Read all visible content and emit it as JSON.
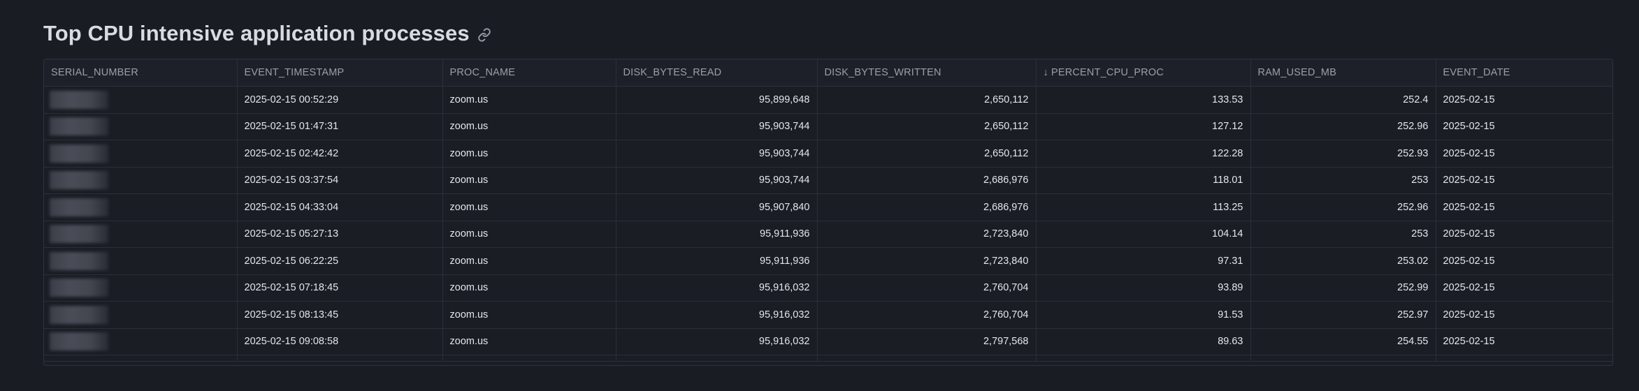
{
  "header": {
    "title": "Top CPU intensive application processes",
    "link_icon": "link-icon"
  },
  "table": {
    "sort": {
      "column": "PERCENT_CPU_PROC",
      "direction": "descending",
      "icon": "arrow-down-icon"
    },
    "columns": [
      {
        "key": "serial",
        "label": "SERIAL_NUMBER",
        "align": "left"
      },
      {
        "key": "ts",
        "label": "EVENT_TIMESTAMP",
        "align": "left"
      },
      {
        "key": "proc",
        "label": "PROC_NAME",
        "align": "left"
      },
      {
        "key": "read",
        "label": "DISK_BYTES_READ",
        "align": "right"
      },
      {
        "key": "written",
        "label": "DISK_BYTES_WRITTEN",
        "align": "right"
      },
      {
        "key": "cpu",
        "label": "PERCENT_CPU_PROC",
        "align": "right"
      },
      {
        "key": "ram",
        "label": "RAM_USED_MB",
        "align": "right"
      },
      {
        "key": "date",
        "label": "EVENT_DATE",
        "align": "left"
      }
    ],
    "rows": [
      {
        "serial": "",
        "ts": "2025-02-15 00:52:29",
        "proc": "zoom.us",
        "read": "95,899,648",
        "written": "2,650,112",
        "cpu": "133.53",
        "ram": "252.4",
        "date": "2025-02-15"
      },
      {
        "serial": "",
        "ts": "2025-02-15 01:47:31",
        "proc": "zoom.us",
        "read": "95,903,744",
        "written": "2,650,112",
        "cpu": "127.12",
        "ram": "252.96",
        "date": "2025-02-15"
      },
      {
        "serial": "",
        "ts": "2025-02-15 02:42:42",
        "proc": "zoom.us",
        "read": "95,903,744",
        "written": "2,650,112",
        "cpu": "122.28",
        "ram": "252.93",
        "date": "2025-02-15"
      },
      {
        "serial": "",
        "ts": "2025-02-15 03:37:54",
        "proc": "zoom.us",
        "read": "95,903,744",
        "written": "2,686,976",
        "cpu": "118.01",
        "ram": "253",
        "date": "2025-02-15"
      },
      {
        "serial": "",
        "ts": "2025-02-15 04:33:04",
        "proc": "zoom.us",
        "read": "95,907,840",
        "written": "2,686,976",
        "cpu": "113.25",
        "ram": "252.96",
        "date": "2025-02-15"
      },
      {
        "serial": "",
        "ts": "2025-02-15 05:27:13",
        "proc": "zoom.us",
        "read": "95,911,936",
        "written": "2,723,840",
        "cpu": "104.14",
        "ram": "253",
        "date": "2025-02-15"
      },
      {
        "serial": "",
        "ts": "2025-02-15 06:22:25",
        "proc": "zoom.us",
        "read": "95,911,936",
        "written": "2,723,840",
        "cpu": "97.31",
        "ram": "253.02",
        "date": "2025-02-15"
      },
      {
        "serial": "",
        "ts": "2025-02-15 07:18:45",
        "proc": "zoom.us",
        "read": "95,916,032",
        "written": "2,760,704",
        "cpu": "93.89",
        "ram": "252.99",
        "date": "2025-02-15"
      },
      {
        "serial": "",
        "ts": "2025-02-15 08:13:45",
        "proc": "zoom.us",
        "read": "95,916,032",
        "written": "2,760,704",
        "cpu": "91.53",
        "ram": "252.97",
        "date": "2025-02-15"
      },
      {
        "serial": "",
        "ts": "2025-02-15 09:08:58",
        "proc": "zoom.us",
        "read": "95,916,032",
        "written": "2,797,568",
        "cpu": "89.63",
        "ram": "254.55",
        "date": "2025-02-15"
      }
    ]
  }
}
